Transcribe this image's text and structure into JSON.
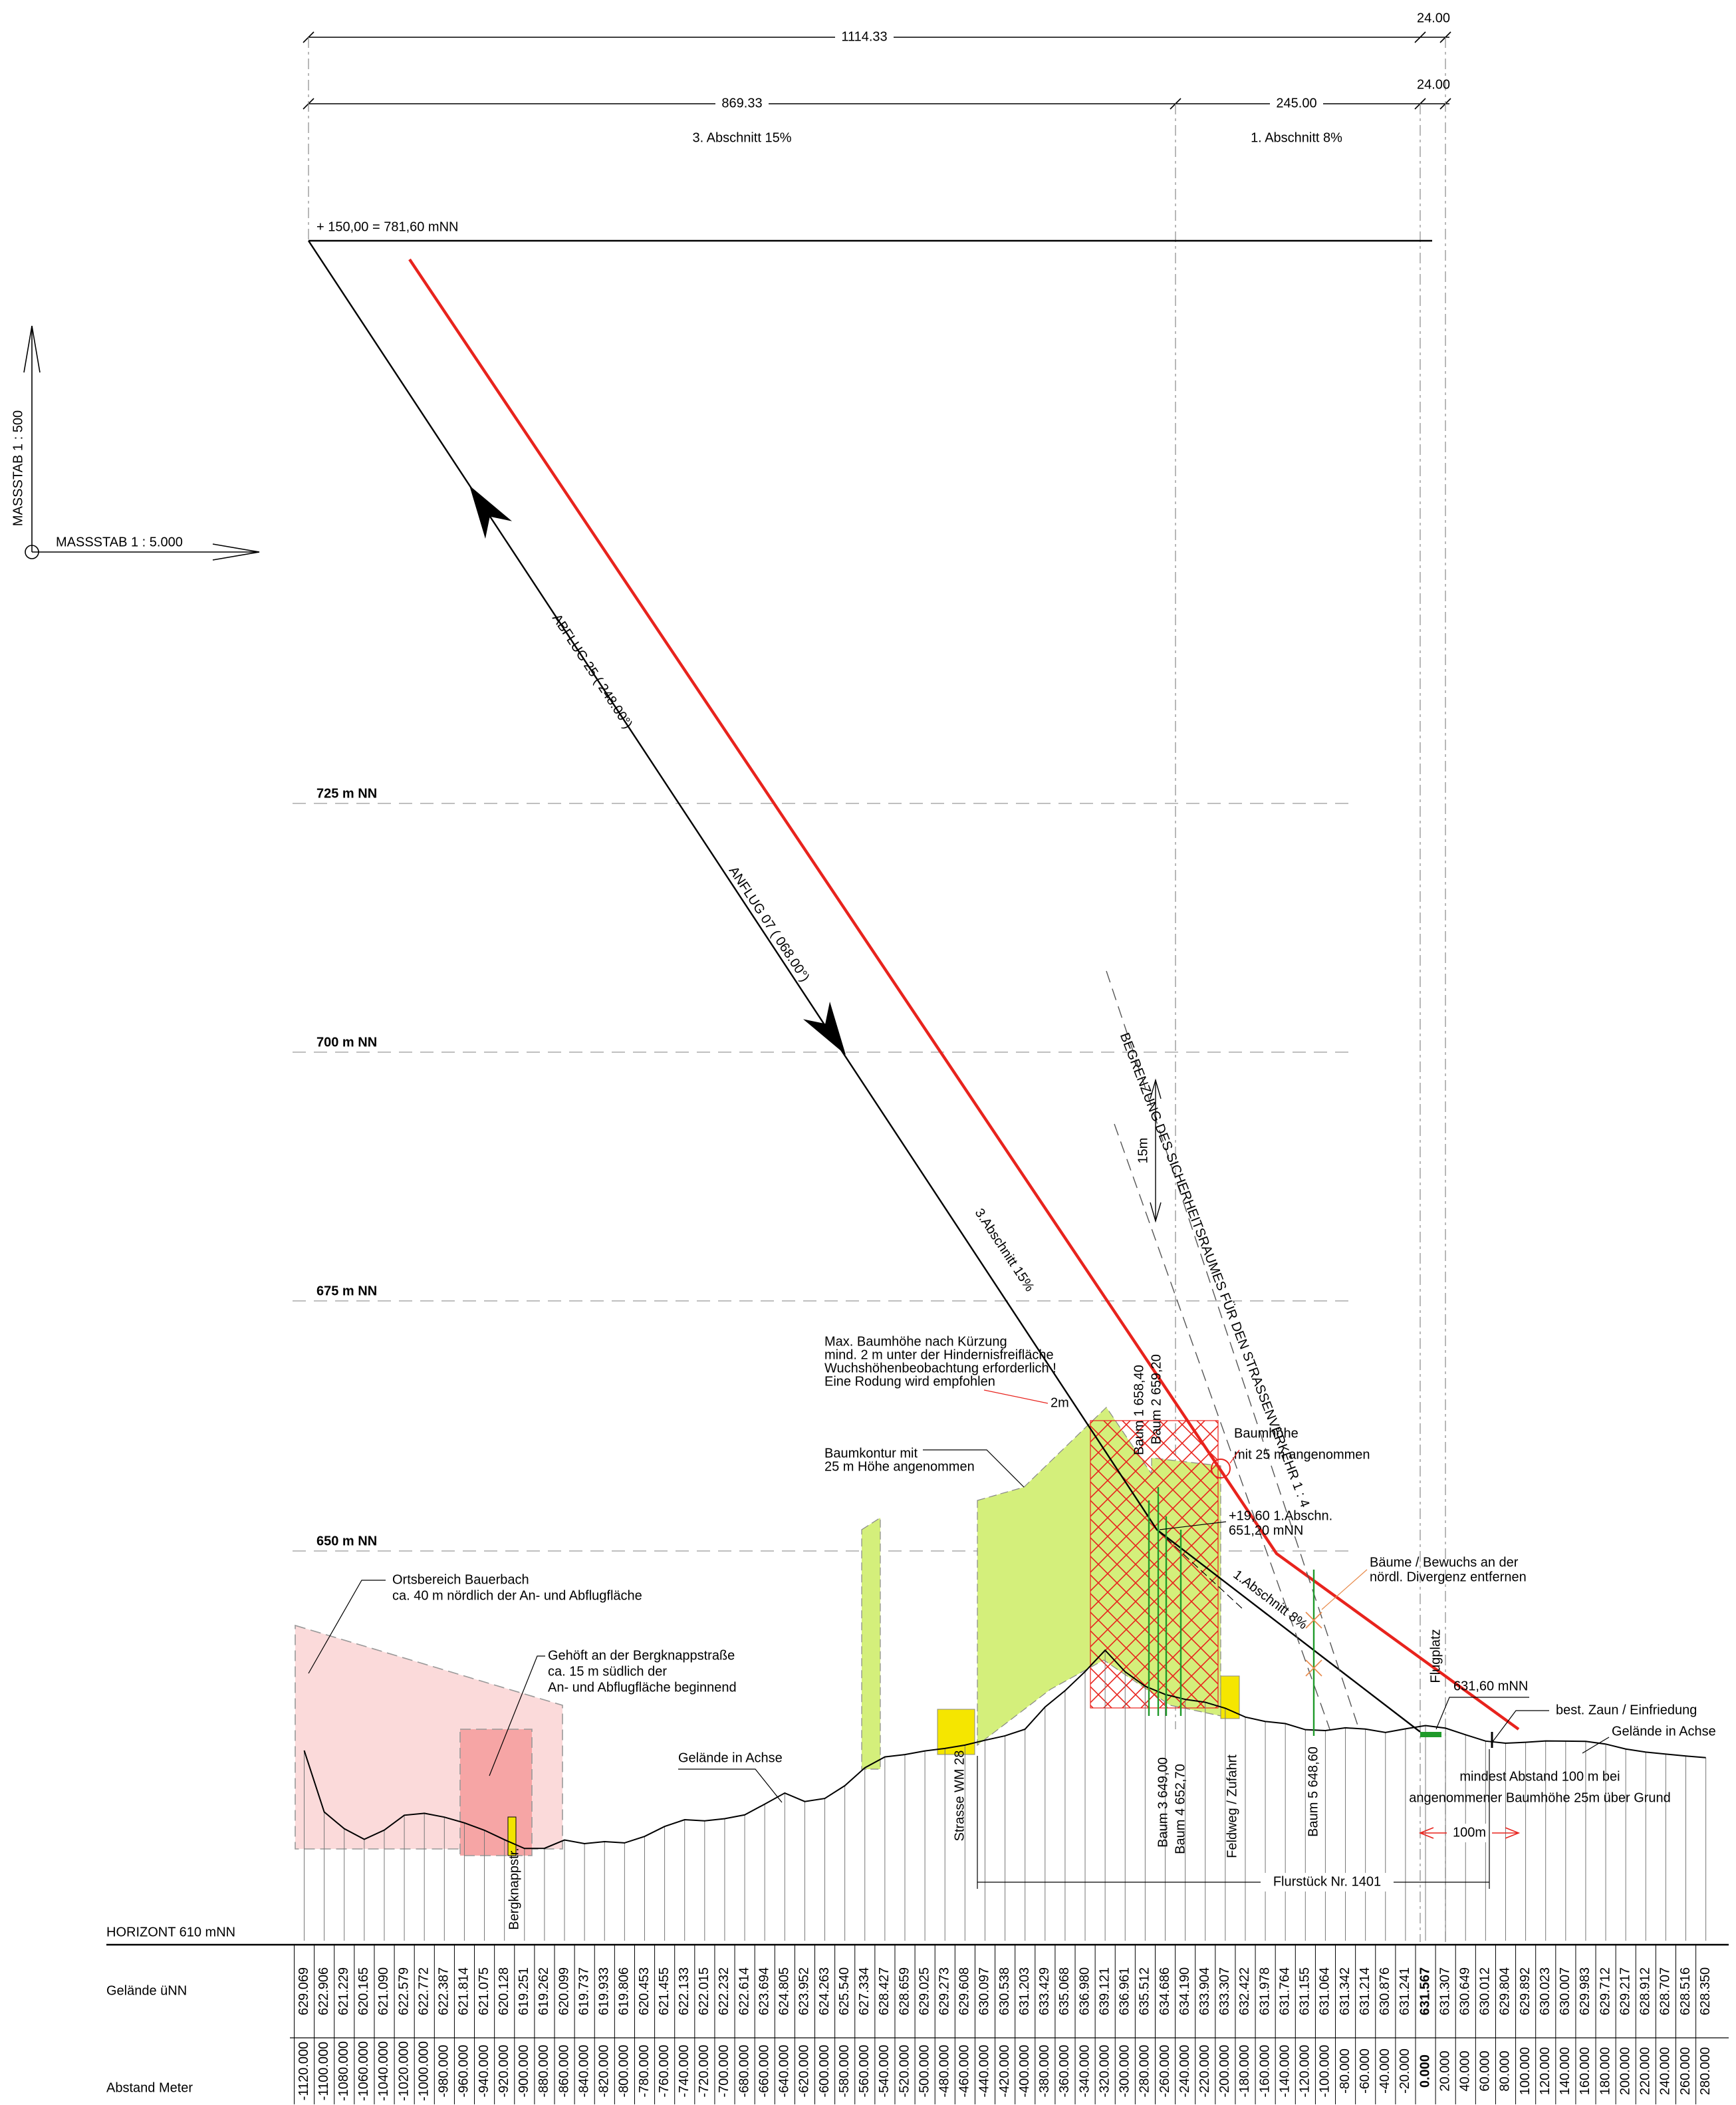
{
  "dimensions": {
    "total": "1114.33",
    "total_end": "24.00",
    "section3": "869.33",
    "section1": "245.00",
    "section_end": "24.00",
    "section3_label": "3. Abschnitt 15%",
    "section1_label": "1. Abschnitt  8%"
  },
  "top_level": "+ 150,00  = 781,60 mNN",
  "scales": {
    "vertical": "MASSSTAB 1 : 500",
    "horizontal": "MASSSTAB 1 : 5.000"
  },
  "approach": {
    "abflug": "ABFLUG 25  ( 248.00°)",
    "anflug": "ANFLUG 07  ( 068.00°)",
    "section3": "3.Abschnitt 15%",
    "section1": "1.Abschnitt  8%"
  },
  "levels": [
    "725 m NN",
    "700 m NN",
    "675 m NN",
    "650 m NN"
  ],
  "annotations": {
    "safety_boundary": "BEGRENZUNG DES SICHERHEITSRAUMES FÜR DEN STRASSENVERKEHR 1 : 4",
    "offset_15m": "15m",
    "max_tree_note": [
      "Max. Baumhöhe nach Kürzung",
      "mind. 2 m unter der Hindernisfreifläche",
      "Wuchshöhenbeobachtung erforderlich !",
      "Eine Rodung wird empfohlen"
    ],
    "offset_2m": "2m",
    "tree_height": [
      "Baumhöhe",
      "mit 25 m angenommen"
    ],
    "tree_contour": [
      "Baumkontur mit",
      "25 m Höhe angenommen"
    ],
    "section_point": [
      "+19,60  1.Abschn.",
      "651,20 mNN"
    ],
    "remove_growth": [
      "Bäume / Bewuchs an der",
      "nördl. Divergenz entfernen"
    ],
    "airfield": "Flugplatz",
    "airfield_level": "631,60 mNN",
    "fence": "best.  Zaun / Einfriedung",
    "terrain_right": "Gelände in Achse",
    "terrain_left": "Gelände in Achse",
    "village": [
      "Ortsbereich Bauerbach",
      "ca. 40 m nördlich der An- und Abflugfläche"
    ],
    "farm": [
      "Gehöft an der Bergknappstraße",
      "ca. 15 m südlich der",
      "An- und Abflugfläche beginnend"
    ],
    "street_bergknapp": "Bergknappstr.",
    "street_wm28": "Strasse WM 28",
    "field_path": "Feldweg / Zufahrt",
    "min_distance": [
      "mindest Abstand 100 m bei",
      "angenommener Baumhöhe 25m über Grund"
    ],
    "distance_100m": "100m",
    "parcel": "Flurstück  Nr. 1401"
  },
  "trees": [
    "Baum 1  658,40",
    "Baum 2  659,20",
    "Baum 3  649,00",
    "Baum 4  652,70",
    "Baum 5  648,60"
  ],
  "table": {
    "horizon": "HORIZONT  610 mNN",
    "row_labels": [
      "Gelände üNN",
      "Abstand Meter"
    ],
    "terrain": [
      "629.069",
      "622.906",
      "621.229",
      "620.165",
      "621.090",
      "622.579",
      "622.772",
      "622.387",
      "621.814",
      "621.075",
      "620.128",
      "619.251",
      "619.262",
      "620.099",
      "619.737",
      "619.933",
      "619.806",
      "620.453",
      "621.455",
      "622.133",
      "622.015",
      "622.232",
      "622.614",
      "623.694",
      "624.805",
      "623.952",
      "624.263",
      "625.540",
      "627.334",
      "628.427",
      "628.659",
      "629.025",
      "629.273",
      "629.608",
      "630.097",
      "630.538",
      "631.203",
      "633.429",
      "635.068",
      "636.980",
      "639.121",
      "636.961",
      "635.512",
      "634.686",
      "634.190",
      "633.904",
      "633.307",
      "632.422",
      "631.978",
      "631.764",
      "631.155",
      "631.064",
      "631.342",
      "631.214",
      "630.876",
      "631.241",
      "631.567",
      "631.307",
      "630.649",
      "630.012",
      "629.804",
      "629.892",
      "630.023",
      "630.007",
      "629.983",
      "629.712",
      "629.217",
      "628.912",
      "628.707",
      "628.516",
      "628.350"
    ],
    "distance": [
      "-1120.000",
      "-1100.000",
      "-1080.000",
      "-1060.000",
      "-1040.000",
      "-1020.000",
      "-1000.000",
      "-980.000",
      "-960.000",
      "-940.000",
      "-920.000",
      "-900.000",
      "-880.000",
      "-860.000",
      "-840.000",
      "-820.000",
      "-800.000",
      "-780.000",
      "-760.000",
      "-740.000",
      "-720.000",
      "-700.000",
      "-680.000",
      "-660.000",
      "-640.000",
      "-620.000",
      "-600.000",
      "-580.000",
      "-560.000",
      "-540.000",
      "-520.000",
      "-500.000",
      "-480.000",
      "-460.000",
      "-440.000",
      "-420.000",
      "-400.000",
      "-380.000",
      "-360.000",
      "-340.000",
      "-320.000",
      "-300.000",
      "-280.000",
      "-260.000",
      "-240.000",
      "-220.000",
      "-200.000",
      "-180.000",
      "-160.000",
      "-140.000",
      "-120.000",
      "-100.000",
      "-80.000",
      "-60.000",
      "-40.000",
      "-20.000",
      "0.000",
      "20.000",
      "40.000",
      "60.000",
      "80.000",
      "100.000",
      "120.000",
      "140.000",
      "160.000",
      "180.000",
      "200.000",
      "220.000",
      "240.000",
      "260.000",
      "280.000"
    ]
  }
}
